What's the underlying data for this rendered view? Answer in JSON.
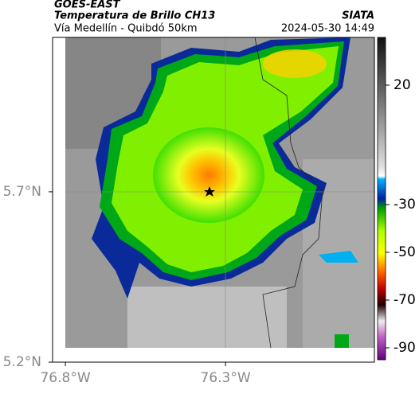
{
  "header": {
    "title": "GOES-EAST",
    "subtitle": "Temperatura de Brillo CH13",
    "source": "SIATA",
    "location": "Vía Medellín - Quibdó 50km",
    "timestamp": "2024-05-30 14:49"
  },
  "map": {
    "xlim": [
      -76.84,
      -75.835
    ],
    "ylim": [
      5.2,
      6.153
    ],
    "xticks": [
      {
        "value": -76.8,
        "label": "76.8°W"
      },
      {
        "value": -76.3,
        "label": "76.3°W"
      }
    ],
    "yticks": [
      {
        "value": 5.7,
        "label": "5.7°N"
      },
      {
        "value": 5.2,
        "label": "5.2°N"
      }
    ]
  },
  "colorbar": {
    "lim": [
      40,
      -95
    ],
    "ticks": [
      20,
      -30,
      -50,
      -70,
      -90
    ]
  }
}
